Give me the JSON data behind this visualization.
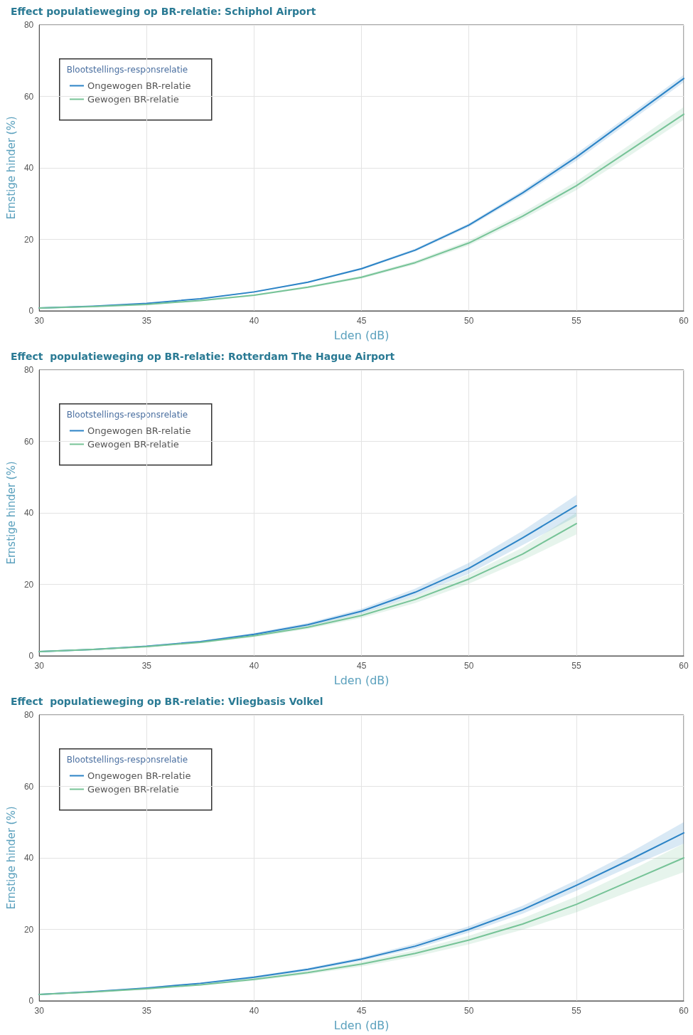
{
  "chart_data": [
    {
      "type": "line",
      "title": "Effect populatieweging op BR-relatie: Schiphol Airport",
      "xlabel": "Lden (dB)",
      "ylabel": "Ernstige hinder (%)",
      "legend_title": "Blootstellings-responsrelatie",
      "legend": "top left",
      "grid": true,
      "marker": "none",
      "x": [
        30,
        32.5,
        35,
        37.5,
        40,
        42.5,
        45,
        47.5,
        50,
        52.5,
        55,
        57.5,
        60
      ],
      "xlim": [
        30,
        60
      ],
      "xticks": [
        30,
        35,
        40,
        45,
        50,
        55,
        60
      ],
      "ylim": [
        0,
        80
      ],
      "yticks": [
        0,
        20,
        40,
        60,
        80
      ],
      "series": [
        {
          "name": "Ongewogen BR-relatie",
          "color": "#2b83c6",
          "values": [
            0.8,
            1.3,
            2.1,
            3.4,
            5.3,
            8.0,
            11.8,
            17,
            24,
            33,
            43,
            54,
            65
          ],
          "lower": [
            0.7,
            1.2,
            2.0,
            3.3,
            5.1,
            7.8,
            11.5,
            16.6,
            23.5,
            32.3,
            42,
            53,
            64
          ],
          "upper": [
            0.9,
            1.4,
            2.2,
            3.5,
            5.5,
            8.2,
            12.1,
            17.4,
            24.5,
            33.7,
            44,
            55,
            66
          ]
        },
        {
          "name": "Gewogen BR-relatie",
          "color": "#76c397",
          "values": [
            0.8,
            1.2,
            1.8,
            2.9,
            4.4,
            6.6,
            9.4,
            13.5,
            19,
            26.5,
            35,
            45,
            55
          ],
          "lower": [
            0.7,
            1.1,
            1.7,
            2.7,
            4.2,
            6.3,
            9.0,
            13,
            18.3,
            25.6,
            33.8,
            43.5,
            53.5
          ],
          "upper": [
            0.9,
            1.3,
            1.9,
            3.1,
            4.6,
            6.9,
            9.8,
            14,
            19.7,
            27.4,
            36.2,
            46.5,
            57
          ]
        }
      ]
    },
    {
      "type": "line",
      "title": "Effect  populatieweging op BR-relatie: Rotterdam The Hague Airport",
      "xlabel": "Lden (dB)",
      "ylabel": "Ernstige hinder (%)",
      "legend_title": "Blootstellings-responsrelatie",
      "legend": "top left",
      "grid": true,
      "marker": "none",
      "x": [
        30,
        32.5,
        35,
        37.5,
        40,
        42.5,
        45,
        47.5,
        50,
        52.5,
        55
      ],
      "xlim": [
        30,
        60
      ],
      "xticks": [
        30,
        35,
        40,
        45,
        50,
        55,
        60
      ],
      "ylim": [
        0,
        80
      ],
      "yticks": [
        0,
        20,
        40,
        60,
        80
      ],
      "series": [
        {
          "name": "Ongewogen BR-relatie",
          "color": "#2b83c6",
          "values": [
            1.2,
            1.8,
            2.7,
            4.0,
            6.0,
            8.7,
            12.5,
            17.8,
            24.5,
            33,
            42
          ],
          "lower": [
            1.1,
            1.7,
            2.5,
            3.8,
            5.6,
            8.2,
            11.8,
            16.8,
            23,
            31,
            39
          ],
          "upper": [
            1.3,
            1.9,
            2.9,
            4.2,
            6.4,
            9.2,
            13.2,
            18.8,
            26,
            35,
            45
          ]
        },
        {
          "name": "Gewogen BR-relatie",
          "color": "#76c397",
          "values": [
            1.2,
            1.8,
            2.6,
            3.8,
            5.6,
            8.0,
            11.3,
            15.8,
            21.5,
            28.5,
            37
          ],
          "lower": [
            1.1,
            1.7,
            2.4,
            3.6,
            5.2,
            7.5,
            10.6,
            14.8,
            20.2,
            26.7,
            34
          ],
          "upper": [
            1.3,
            1.9,
            2.8,
            4.0,
            6.0,
            8.5,
            12.0,
            16.8,
            22.8,
            30.3,
            40
          ]
        }
      ]
    },
    {
      "type": "line",
      "title": "Effect  populatieweging op BR-relatie: Vliegbasis Volkel",
      "xlabel": "Lden (dB)",
      "ylabel": "Ernstige hinder (%)",
      "legend_title": "Blootstellings-responsrelatie",
      "legend": "top left",
      "grid": true,
      "marker": "none",
      "x": [
        30,
        32.5,
        35,
        37.5,
        40,
        42.5,
        45,
        47.5,
        50,
        52.5,
        55,
        57.5,
        60
      ],
      "xlim": [
        30,
        60
      ],
      "xticks": [
        30,
        35,
        40,
        45,
        50,
        55,
        60
      ],
      "ylim": [
        0,
        80
      ],
      "yticks": [
        0,
        20,
        40,
        60,
        80
      ],
      "series": [
        {
          "name": "Ongewogen BR-relatie",
          "color": "#2b83c6",
          "values": [
            1.8,
            2.6,
            3.6,
            4.9,
            6.6,
            8.8,
            11.7,
            15.3,
            20,
            25.5,
            32.3,
            39.5,
            47
          ],
          "lower": [
            1.7,
            2.5,
            3.4,
            4.7,
            6.3,
            8.4,
            11.2,
            14.6,
            19.1,
            24.4,
            30.8,
            37.5,
            44
          ],
          "upper": [
            1.9,
            2.7,
            3.8,
            5.1,
            6.9,
            9.2,
            12.2,
            16,
            20.9,
            26.6,
            33.8,
            41.5,
            50
          ]
        },
        {
          "name": "Gewogen BR-relatie",
          "color": "#76c397",
          "values": [
            1.8,
            2.5,
            3.4,
            4.5,
            6.0,
            7.9,
            10.3,
            13.3,
            17,
            21.5,
            27,
            33.5,
            40
          ],
          "lower": [
            1.7,
            2.4,
            3.2,
            4.3,
            5.6,
            7.4,
            9.6,
            12.4,
            15.8,
            19.9,
            24.8,
            30.6,
            36
          ],
          "upper": [
            1.9,
            2.6,
            3.6,
            4.7,
            6.4,
            8.4,
            11.0,
            14.2,
            18.2,
            23.1,
            29.2,
            36.4,
            44
          ]
        }
      ]
    }
  ]
}
